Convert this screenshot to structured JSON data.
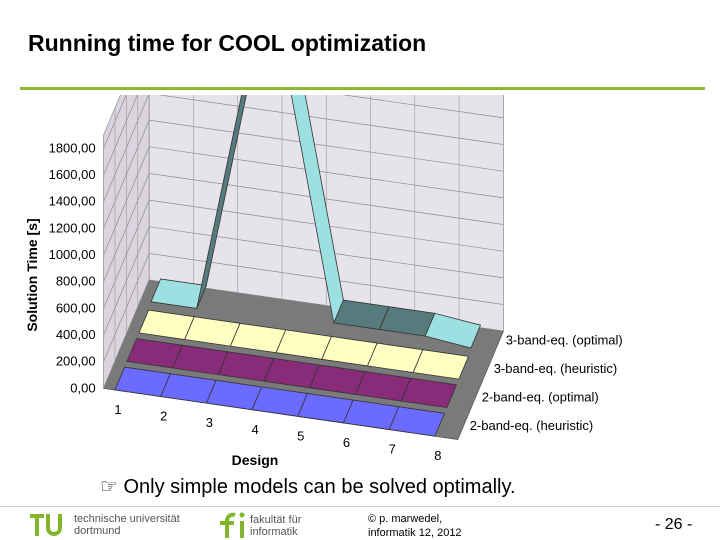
{
  "slide": {
    "title": "Running time for COOL optimization",
    "caption_icon": "pointing-hand-icon",
    "caption": "Only simple models can be solved optimally.",
    "footer": {
      "univ_line1": "technische universität",
      "univ_line2": "dortmund",
      "faculty_line1": "fakultät für",
      "faculty_line2": "informatik",
      "copyright_line1": "© p. marwedel,",
      "copyright_line2": "informatik 12,  2012",
      "page_number": "-  26 -"
    }
  },
  "colors": {
    "accent": "#8db832",
    "tu_green": "#83b52c",
    "series": [
      "#6b6bff",
      "#882c79",
      "#ffffc2",
      "#9de0e2"
    ],
    "wall": "#e7e3ea",
    "floor": "#7a7a7a"
  },
  "chart_data": {
    "type": "line",
    "style": "3d-ribbon",
    "ylabel": "Solution Time [s]",
    "xlabel": "Design",
    "ylim": [
      0,
      1800
    ],
    "yticks": [
      "0,00",
      "200,00",
      "400,00",
      "600,00",
      "800,00",
      "1000,00",
      "1200,00",
      "1400,00",
      "1600,00",
      "1800,00"
    ],
    "categories": [
      "1",
      "2",
      "3",
      "4",
      "5",
      "6",
      "7",
      "8"
    ],
    "grid": true,
    "series": [
      {
        "name": "2-band-eq. (heuristic)",
        "values": [
          1,
          1,
          1,
          1,
          1,
          1,
          1,
          1
        ]
      },
      {
        "name": "2-band-eq. (optimal)",
        "values": [
          1,
          1,
          1,
          1,
          1,
          1,
          1,
          1
        ]
      },
      {
        "name": "3-band-eq. (heuristic)",
        "values": [
          1,
          1,
          1,
          1,
          1,
          1,
          1,
          1
        ]
      },
      {
        "name": "3-band-eq. (optimal)",
        "values": [
          20,
          20,
          1700,
          1850,
          60,
          60,
          60,
          20
        ]
      }
    ]
  }
}
